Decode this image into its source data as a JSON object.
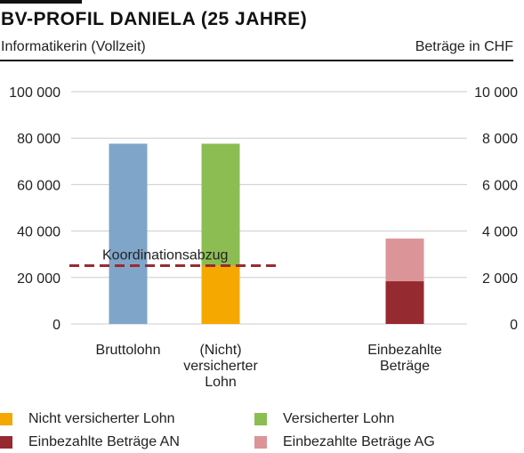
{
  "header": {
    "title": "BV-PROFIL DANIELA (25 JAHRE)",
    "subtitle": "Informatikerin (Vollzeit)",
    "unit": "Beträge in CHF"
  },
  "colors": {
    "bruttolohn": "#7fa5c8",
    "nicht_versichert": "#f5a800",
    "versichert": "#8cbd52",
    "einbezahlt_an": "#962a31",
    "einbezahlt_ag": "#db9598",
    "koordination": "#9b2a31",
    "grid": "#cccccc"
  },
  "chart_data": {
    "type": "bar",
    "title": "BV-PROFIL DANIELA (25 JAHRE)",
    "subtitle": "Informatikerin (Vollzeit)",
    "unit_label": "Beträge in CHF",
    "categories": [
      "Bruttolohn",
      "(Nicht)\nversicherter\nLohn",
      "Einbezahlte\nBeträge"
    ],
    "left_axis": {
      "ylim": [
        0,
        100000
      ],
      "ticks": [
        0,
        20000,
        40000,
        60000,
        80000,
        100000
      ],
      "tick_labels": [
        "0",
        "20 000",
        "40 000",
        "60 000",
        "80 000",
        "100 000"
      ]
    },
    "right_axis": {
      "ylim": [
        0,
        10000
      ],
      "ticks": [
        0,
        2000,
        4000,
        6000,
        8000,
        10000
      ],
      "tick_labels": [
        "0",
        "2 000",
        "4 000",
        "6 000",
        "8 000",
        "10 000"
      ]
    },
    "bars": [
      {
        "category": "Bruttolohn",
        "axis": "left",
        "segments": [
          {
            "series": "Bruttolohn",
            "value": 77600,
            "color_key": "bruttolohn"
          }
        ]
      },
      {
        "category": "(Nicht) versicherter Lohn",
        "axis": "left",
        "segments": [
          {
            "series": "Nicht versicherter Lohn",
            "value": 25095,
            "color_key": "nicht_versichert"
          },
          {
            "series": "Versicherter Lohn",
            "value": 52505,
            "color_key": "versichert"
          }
        ]
      },
      {
        "category": "Einbezahlte Beträge",
        "axis": "right",
        "segments": [
          {
            "series": "Einbezahlte Beträge AN",
            "value": 1838,
            "color_key": "einbezahlt_an"
          },
          {
            "series": "Einbezahlte Beträge AG",
            "value": 1838,
            "color_key": "einbezahlt_ag"
          }
        ]
      }
    ],
    "reference_line": {
      "label": "Koordinationsabzug",
      "value": 25095,
      "axis": "left",
      "style": "dashed"
    },
    "grid": true,
    "legend_position": "bottom",
    "legend": [
      {
        "label": "Nicht versicherter Lohn",
        "color_key": "nicht_versichert"
      },
      {
        "label": "Versicherter Lohn",
        "color_key": "versichert"
      },
      {
        "label": "Einbezahlte Beträge AN",
        "color_key": "einbezahlt_an"
      },
      {
        "label": "Einbezahlte Beträge AG",
        "color_key": "einbezahlt_ag"
      }
    ]
  }
}
